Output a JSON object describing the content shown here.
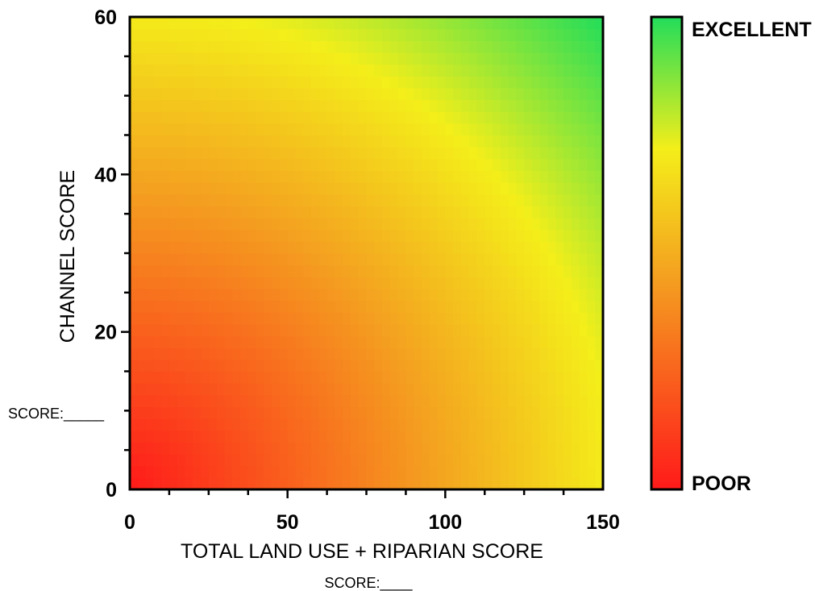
{
  "chart_data": {
    "type": "heatmap",
    "title": "",
    "xlabel": "TOTAL LAND USE + RIPARIAN SCORE",
    "ylabel": "CHANNEL SCORE",
    "xlim": [
      0,
      150
    ],
    "ylim": [
      0,
      60
    ],
    "x_ticks": [
      0,
      50,
      100,
      150
    ],
    "y_ticks": [
      0,
      20,
      40,
      60
    ],
    "x_tick_labels": [
      "0",
      "50",
      "100",
      "150"
    ],
    "y_tick_labels": [
      "0",
      "20",
      "40",
      "60"
    ],
    "x_minor_step": 12.5,
    "y_minor_step": 5,
    "grid": false,
    "colorscale": {
      "low_label": "POOR",
      "high_label": "EXCELLENT",
      "colors": [
        "#ff1a1a",
        "#f4a020",
        "#f4ee1a",
        "#22dd5a"
      ],
      "stops": [
        0,
        0.45,
        0.72,
        1
      ]
    },
    "x_score_label": "SCORE:____",
    "y_score_label": "SCORE:_____"
  }
}
